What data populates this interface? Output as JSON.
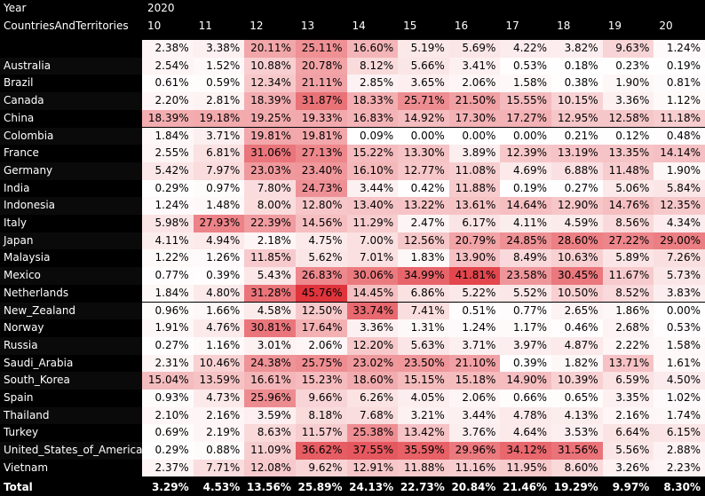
{
  "matrix": {
    "year_label": "Year",
    "year_value": "2020",
    "row_header_label": "CountriesAndTerritories",
    "columns": [
      "10",
      "11",
      "12",
      "13",
      "14",
      "15",
      "16",
      "17",
      "18",
      "19",
      "20"
    ],
    "rows": [
      {
        "label": "",
        "cells": [
          "2.38%",
          "3.38%",
          "20.11%",
          "25.11%",
          "16.60%",
          "5.19%",
          "5.69%",
          "4.22%",
          "3.82%",
          "9.63%",
          "1.24%"
        ]
      },
      {
        "label": "Australia",
        "cells": [
          "2.54%",
          "1.52%",
          "10.88%",
          "20.78%",
          "8.12%",
          "5.66%",
          "3.41%",
          "0.53%",
          "0.18%",
          "0.23%",
          "0.19%"
        ]
      },
      {
        "label": "Brazil",
        "cells": [
          "0.61%",
          "0.59%",
          "12.34%",
          "21.11%",
          "2.85%",
          "3.65%",
          "2.06%",
          "1.58%",
          "0.38%",
          "1.90%",
          "0.81%"
        ]
      },
      {
        "label": "Canada",
        "cells": [
          "2.20%",
          "2.81%",
          "18.39%",
          "31.87%",
          "18.33%",
          "25.71%",
          "21.50%",
          "15.55%",
          "10.15%",
          "3.36%",
          "1.12%"
        ]
      },
      {
        "label": "China",
        "cells": [
          "18.39%",
          "19.18%",
          "19.25%",
          "19.33%",
          "16.83%",
          "14.92%",
          "17.30%",
          "17.27%",
          "12.95%",
          "12.58%",
          "11.18%"
        ]
      },
      {
        "label": "Colombia",
        "cells": [
          "1.84%",
          "3.71%",
          "19.81%",
          "19.81%",
          "0.09%",
          "0.00%",
          "0.00%",
          "0.00%",
          "0.21%",
          "0.12%",
          "0.48%"
        ]
      },
      {
        "label": "France",
        "cells": [
          "2.55%",
          "6.81%",
          "31.06%",
          "27.13%",
          "15.22%",
          "13.30%",
          "3.89%",
          "12.39%",
          "13.19%",
          "13.35%",
          "14.14%"
        ]
      },
      {
        "label": "Germany",
        "cells": [
          "5.42%",
          "7.97%",
          "23.03%",
          "23.40%",
          "16.10%",
          "12.77%",
          "11.08%",
          "4.69%",
          "6.88%",
          "11.48%",
          "1.90%"
        ]
      },
      {
        "label": "India",
        "cells": [
          "0.29%",
          "0.97%",
          "7.80%",
          "24.73%",
          "3.44%",
          "0.42%",
          "11.88%",
          "0.19%",
          "0.27%",
          "5.06%",
          "5.84%"
        ]
      },
      {
        "label": "Indonesia",
        "cells": [
          "1.24%",
          "1.48%",
          "8.00%",
          "12.80%",
          "13.40%",
          "13.22%",
          "13.61%",
          "14.64%",
          "12.90%",
          "14.76%",
          "12.35%"
        ]
      },
      {
        "label": "Italy",
        "cells": [
          "5.98%",
          "27.93%",
          "22.39%",
          "14.56%",
          "11.29%",
          "2.47%",
          "6.17%",
          "4.11%",
          "4.59%",
          "8.56%",
          "4.34%"
        ]
      },
      {
        "label": "Japan",
        "cells": [
          "4.11%",
          "4.94%",
          "2.18%",
          "4.75%",
          "7.00%",
          "12.56%",
          "20.79%",
          "24.85%",
          "28.60%",
          "27.22%",
          "29.00%"
        ]
      },
      {
        "label": "Malaysia",
        "cells": [
          "1.22%",
          "1.26%",
          "11.85%",
          "5.62%",
          "7.01%",
          "1.83%",
          "13.90%",
          "8.49%",
          "10.63%",
          "5.89%",
          "7.26%"
        ]
      },
      {
        "label": "Mexico",
        "cells": [
          "0.77%",
          "0.39%",
          "5.43%",
          "26.83%",
          "30.06%",
          "34.99%",
          "41.81%",
          "23.58%",
          "30.45%",
          "11.67%",
          "5.73%"
        ]
      },
      {
        "label": "Netherlands",
        "cells": [
          "1.84%",
          "4.80%",
          "31.28%",
          "45.76%",
          "14.45%",
          "6.86%",
          "5.22%",
          "5.52%",
          "10.50%",
          "8.52%",
          "3.83%"
        ]
      },
      {
        "label": "New_Zealand",
        "cells": [
          "0.96%",
          "1.66%",
          "4.58%",
          "12.50%",
          "33.74%",
          "7.41%",
          "0.51%",
          "0.77%",
          "2.65%",
          "1.86%",
          "0.00%"
        ]
      },
      {
        "label": "Norway",
        "cells": [
          "1.91%",
          "4.76%",
          "30.81%",
          "17.64%",
          "3.36%",
          "1.31%",
          "1.24%",
          "1.17%",
          "0.46%",
          "2.68%",
          "0.53%"
        ]
      },
      {
        "label": "Russia",
        "cells": [
          "0.27%",
          "1.16%",
          "3.01%",
          "2.06%",
          "12.20%",
          "5.63%",
          "3.71%",
          "3.97%",
          "4.87%",
          "2.22%",
          "1.58%"
        ]
      },
      {
        "label": "Saudi_Arabia",
        "cells": [
          "2.31%",
          "10.46%",
          "24.38%",
          "25.75%",
          "23.02%",
          "23.50%",
          "21.10%",
          "0.39%",
          "1.82%",
          "13.71%",
          "1.61%"
        ]
      },
      {
        "label": "South_Korea",
        "cells": [
          "15.04%",
          "13.59%",
          "16.61%",
          "15.23%",
          "18.60%",
          "15.15%",
          "15.18%",
          "14.90%",
          "10.39%",
          "6.59%",
          "4.50%"
        ]
      },
      {
        "label": "Spain",
        "cells": [
          "0.93%",
          "4.73%",
          "25.96%",
          "9.66%",
          "6.26%",
          "4.05%",
          "2.06%",
          "0.66%",
          "0.65%",
          "3.35%",
          "1.02%"
        ]
      },
      {
        "label": "Thailand",
        "cells": [
          "2.10%",
          "2.16%",
          "3.59%",
          "8.18%",
          "7.68%",
          "3.21%",
          "3.44%",
          "4.78%",
          "4.13%",
          "2.16%",
          "1.74%"
        ]
      },
      {
        "label": "Turkey",
        "cells": [
          "0.69%",
          "2.19%",
          "8.63%",
          "11.57%",
          "25.38%",
          "13.42%",
          "3.76%",
          "4.64%",
          "3.53%",
          "6.64%",
          "6.15%"
        ]
      },
      {
        "label": "United_States_of_America",
        "cells": [
          "0.29%",
          "0.88%",
          "11.09%",
          "36.62%",
          "37.55%",
          "35.59%",
          "29.96%",
          "34.12%",
          "31.56%",
          "5.56%",
          "2.88%"
        ]
      },
      {
        "label": "Vietnam",
        "cells": [
          "2.37%",
          "7.71%",
          "12.08%",
          "9.62%",
          "12.91%",
          "11.88%",
          "11.16%",
          "11.95%",
          "8.60%",
          "3.26%",
          "2.23%"
        ]
      }
    ],
    "total": {
      "label": "Total",
      "cells": [
        "3.29%",
        "4.53%",
        "13.56%",
        "25.89%",
        "24.13%",
        "22.73%",
        "20.84%",
        "21.46%",
        "19.29%",
        "9.97%",
        "8.30%"
      ]
    },
    "colors": {
      "background": "#000000",
      "cell_low": "#ffffff",
      "cell_high": "#e0343c",
      "header_text": "#ffffff"
    },
    "heat_max_percent": 45.76
  }
}
